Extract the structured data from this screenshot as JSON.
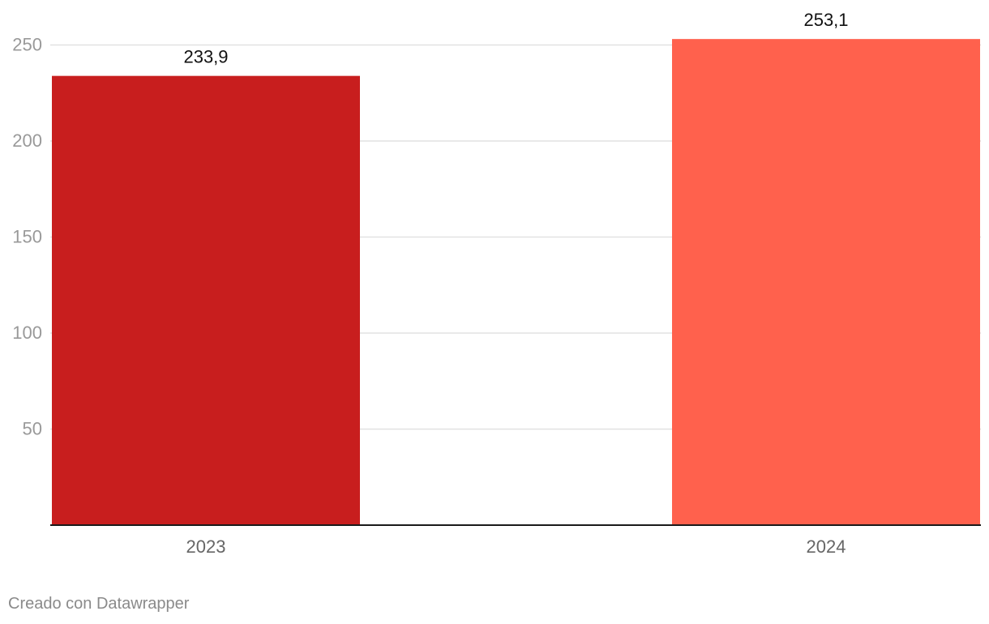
{
  "chart_data": {
    "type": "bar",
    "categories": [
      "2023",
      "2024"
    ],
    "values": [
      233.9,
      253.1
    ],
    "value_labels": [
      "233,9",
      "253,1"
    ],
    "bar_colors": [
      "#c81e1e",
      "#ff614d"
    ],
    "yticks": [
      50,
      100,
      150,
      200,
      250
    ],
    "ylim": [
      0,
      250
    ],
    "grid": true,
    "title": "",
    "xlabel": "",
    "ylabel": ""
  },
  "footer": {
    "credit": "Creado con Datawrapper"
  },
  "colors": {
    "gridline": "#e2e2e2",
    "baseline": "#1a1a1a",
    "tick_label": "#999999",
    "category_label": "#666666",
    "value_label": "#111111"
  }
}
